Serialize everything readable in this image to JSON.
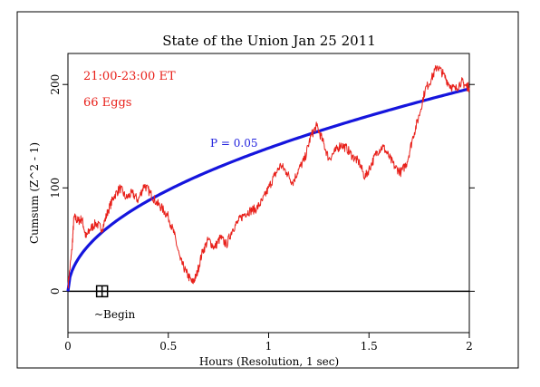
{
  "chart_data": {
    "type": "line",
    "title": "State of the Union Jan 25 2011",
    "xlabel": "Hours (Resolution, 1 sec)",
    "ylabel": "Cumsum (Z^2 - 1)",
    "xlim": [
      0,
      2
    ],
    "ylim": [
      -40,
      230
    ],
    "x_ticks": [
      0,
      0.5,
      1,
      1.5,
      2
    ],
    "x_tick_labels": [
      "0",
      "0.5",
      "1",
      "1.5",
      "2"
    ],
    "y_ticks": [
      0,
      100,
      200
    ],
    "y_tick_labels": [
      "0",
      "100",
      "200"
    ],
    "annotations": {
      "time_range": "21:00-23:00 ET",
      "eggs": "66 Eggs",
      "p_label": "P = 0.05",
      "begin_label": "~Begin"
    },
    "begin_marker": {
      "x": 0.17,
      "y": 0
    },
    "p_curve": {
      "name": "P = 0.05",
      "coefficient": 138.5,
      "color": "#1515dd"
    },
    "cumsum": {
      "color": "#e8201a",
      "points": [
        [
          0.0,
          5
        ],
        [
          0.02,
          40
        ],
        [
          0.03,
          72
        ],
        [
          0.05,
          68
        ],
        [
          0.07,
          70
        ],
        [
          0.09,
          52
        ],
        [
          0.11,
          60
        ],
        [
          0.14,
          66
        ],
        [
          0.17,
          60
        ],
        [
          0.2,
          78
        ],
        [
          0.23,
          92
        ],
        [
          0.26,
          100
        ],
        [
          0.29,
          90
        ],
        [
          0.32,
          95
        ],
        [
          0.35,
          88
        ],
        [
          0.38,
          103
        ],
        [
          0.41,
          95
        ],
        [
          0.44,
          86
        ],
        [
          0.47,
          80
        ],
        [
          0.5,
          72
        ],
        [
          0.53,
          55
        ],
        [
          0.56,
          30
        ],
        [
          0.59,
          18
        ],
        [
          0.62,
          8
        ],
        [
          0.64,
          15
        ],
        [
          0.67,
          38
        ],
        [
          0.7,
          50
        ],
        [
          0.73,
          42
        ],
        [
          0.76,
          52
        ],
        [
          0.79,
          45
        ],
        [
          0.82,
          60
        ],
        [
          0.85,
          68
        ],
        [
          0.88,
          75
        ],
        [
          0.91,
          78
        ],
        [
          0.94,
          80
        ],
        [
          0.97,
          88
        ],
        [
          1.0,
          100
        ],
        [
          1.03,
          112
        ],
        [
          1.06,
          122
        ],
        [
          1.09,
          115
        ],
        [
          1.12,
          105
        ],
        [
          1.15,
          118
        ],
        [
          1.18,
          128
        ],
        [
          1.21,
          150
        ],
        [
          1.24,
          160
        ],
        [
          1.27,
          145
        ],
        [
          1.3,
          128
        ],
        [
          1.33,
          135
        ],
        [
          1.36,
          142
        ],
        [
          1.39,
          138
        ],
        [
          1.42,
          130
        ],
        [
          1.45,
          125
        ],
        [
          1.48,
          110
        ],
        [
          1.51,
          122
        ],
        [
          1.54,
          135
        ],
        [
          1.57,
          140
        ],
        [
          1.6,
          130
        ],
        [
          1.63,
          120
        ],
        [
          1.66,
          115
        ],
        [
          1.69,
          125
        ],
        [
          1.72,
          150
        ],
        [
          1.75,
          170
        ],
        [
          1.78,
          195
        ],
        [
          1.81,
          205
        ],
        [
          1.84,
          218
        ],
        [
          1.87,
          210
        ],
        [
          1.9,
          200
        ],
        [
          1.93,
          195
        ],
        [
          1.96,
          203
        ],
        [
          1.98,
          199
        ],
        [
          2.0,
          197
        ]
      ]
    }
  }
}
